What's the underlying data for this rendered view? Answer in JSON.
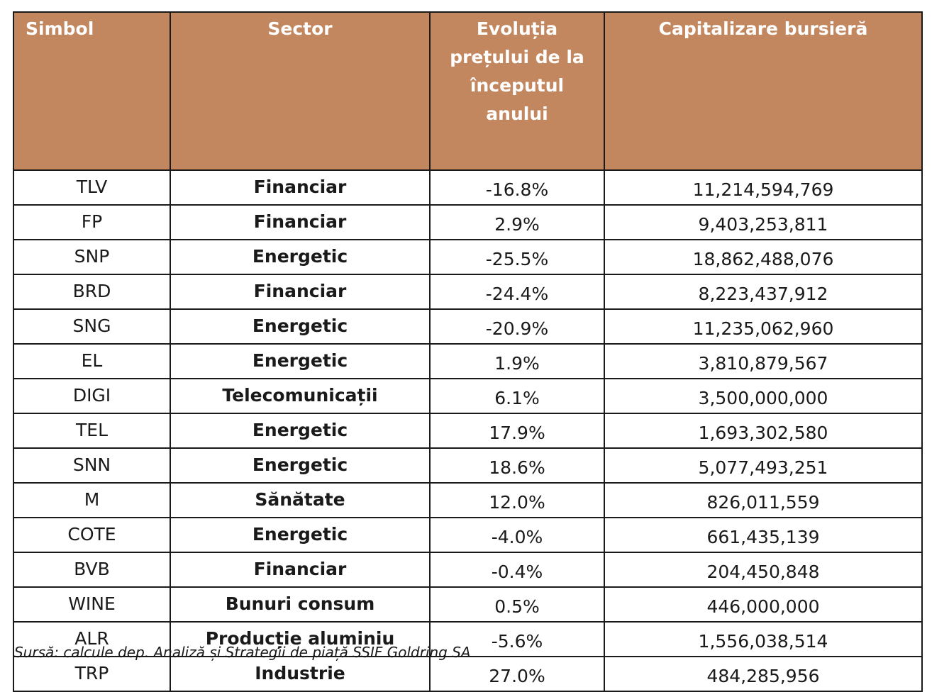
{
  "table": {
    "headers": [
      "Simbol",
      "Sector",
      "Evoluția prețului de la începutul anului",
      "Capitalizare bursieră"
    ],
    "rows": [
      [
        "TLV",
        "Financiar",
        "-16.8%",
        "11,214,594,769"
      ],
      [
        "FP",
        "Financiar",
        "2.9%",
        "9,403,253,811"
      ],
      [
        "SNP",
        "Energetic",
        "-25.5%",
        "18,862,488,076"
      ],
      [
        "BRD",
        "Financiar",
        "-24.4%",
        "8,223,437,912"
      ],
      [
        "SNG",
        "Energetic",
        "-20.9%",
        "11,235,062,960"
      ],
      [
        "EL",
        "Energetic",
        "1.9%",
        "3,810,879,567"
      ],
      [
        "DIGI",
        "Telecomunicații",
        "6.1%",
        "3,500,000,000"
      ],
      [
        "TEL",
        "Energetic",
        "17.9%",
        "1,693,302,580"
      ],
      [
        "SNN",
        "Energetic",
        "18.6%",
        "5,077,493,251"
      ],
      [
        "M",
        "Sănătate",
        "12.0%",
        "826,011,559"
      ],
      [
        "COTE",
        "Energetic",
        "-4.0%",
        "661,435,139"
      ],
      [
        "BVB",
        "Financiar",
        "-0.4%",
        "204,450,848"
      ],
      [
        "WINE",
        "Bunuri consum",
        "0.5%",
        "446,000,000"
      ],
      [
        "ALR",
        "Producție aluminiu",
        "-5.6%",
        "1,556,038,514"
      ],
      [
        "TRP",
        "Industrie",
        "27.0%",
        "484,285,956"
      ]
    ]
  },
  "source_note": "Sursă: calcule dep. Analiză și Strategii de piață SSIF Goldring SA",
  "colors": {
    "header_bg": "#c2875e",
    "header_text": "#ffffff",
    "border": "#1a1a1a"
  }
}
